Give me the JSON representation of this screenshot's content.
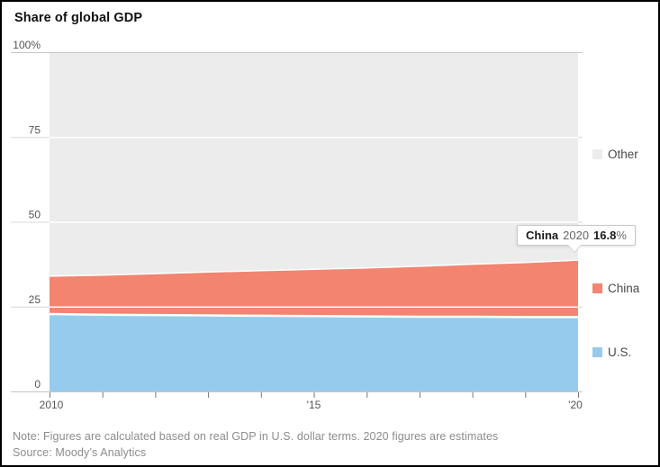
{
  "header": {
    "title": "Share of global GDP"
  },
  "chart_data": {
    "type": "area",
    "stacked": true,
    "title": "Share of global GDP",
    "x": [
      2010,
      2011,
      2012,
      2013,
      2014,
      2015,
      2016,
      2017,
      2018,
      2019,
      2020
    ],
    "series": [
      {
        "name": "U.S.",
        "color": "#97CBED",
        "values": [
          22.8,
          22.6,
          22.5,
          22.4,
          22.3,
          22.2,
          22.1,
          22.0,
          22.0,
          21.9,
          21.9
        ]
      },
      {
        "name": "China",
        "color": "#F28470",
        "values": [
          11.2,
          11.7,
          12.2,
          12.8,
          13.3,
          13.8,
          14.3,
          14.9,
          15.5,
          16.1,
          16.8
        ]
      },
      {
        "name": "Other",
        "color": "#ECECED",
        "values": [
          66.0,
          65.7,
          65.3,
          64.8,
          64.4,
          64.0,
          63.6,
          63.1,
          62.5,
          62.0,
          61.3
        ]
      }
    ],
    "ylim": [
      0,
      100
    ],
    "grid": true,
    "legend_position": "right",
    "x_major_ticks": [
      {
        "x": 2010,
        "label": "2010"
      },
      {
        "x": 2015,
        "label": "'15"
      },
      {
        "x": 2020,
        "label": "'20"
      }
    ],
    "y_ticks": [
      {
        "value": 0,
        "label": "0"
      },
      {
        "value": 25,
        "label": "25"
      },
      {
        "value": 50,
        "label": "50"
      },
      {
        "value": 75,
        "label": "75"
      },
      {
        "value": 100,
        "label": "100%"
      }
    ]
  },
  "legend": {
    "items": [
      {
        "label": "Other",
        "color": "#ECECED"
      },
      {
        "label": "China",
        "color": "#F28470"
      },
      {
        "label": "U.S.",
        "color": "#97CBED"
      }
    ]
  },
  "tooltip": {
    "series": "China",
    "year": "2020",
    "value": "16.8",
    "unit": "%"
  },
  "footer": {
    "note": "Note: Figures are calculated based on real GDP in U.S. dollar terms. 2020 figures are estimates",
    "source": "Source: Moody’s Analytics"
  },
  "colors": {
    "us": "#97CBED",
    "china": "#F28470",
    "other": "#ECECED",
    "grid_inner": "#D8D8D8",
    "grid_outer": "#C6C6C6",
    "grid_over_area": "#FFFFFF",
    "tick": "#777777",
    "axis_label": "#555555"
  }
}
